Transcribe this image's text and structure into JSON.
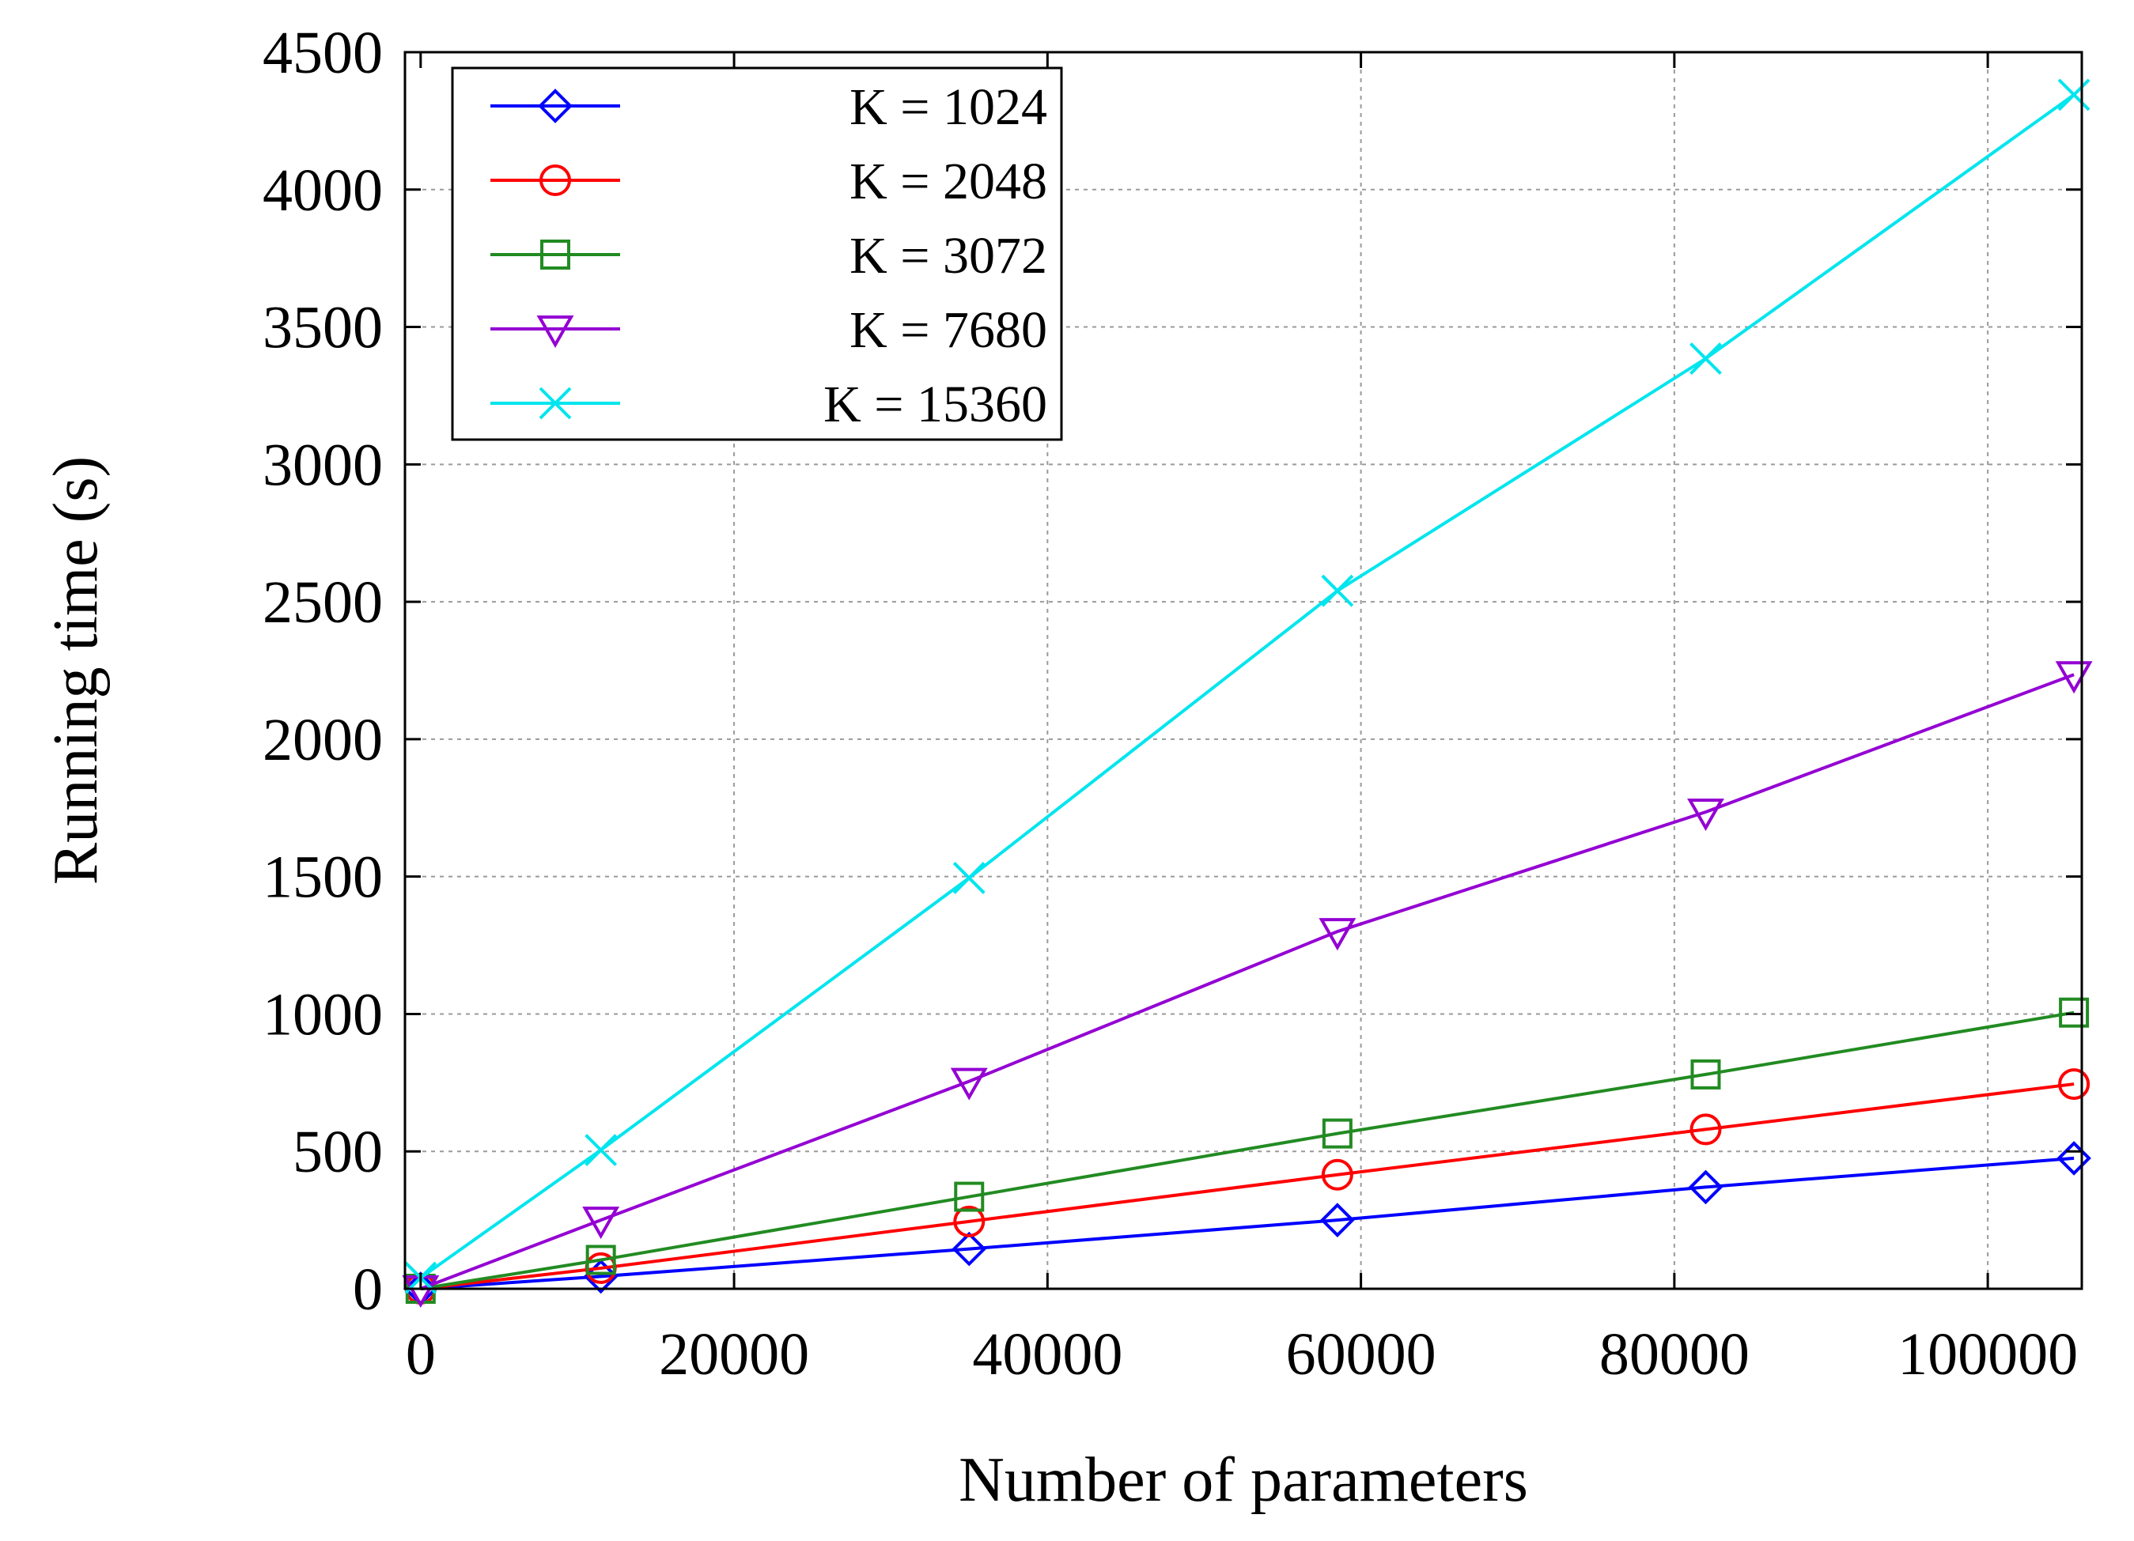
{
  "chart_data": {
    "type": "line",
    "title": "",
    "xlabel": "Number of parameters",
    "ylabel": "Running time (s)",
    "xlim": [
      -1000,
      106000
    ],
    "ylim": [
      0,
      4500
    ],
    "xticks": [
      0,
      20000,
      40000,
      60000,
      80000,
      100000
    ],
    "yticks": [
      0,
      500,
      1000,
      1500,
      2000,
      2500,
      3000,
      3500,
      4000,
      4500
    ],
    "xtick_labels": [
      "0",
      "20000",
      "40000",
      "60000",
      "80000",
      "100000"
    ],
    "ytick_labels": [
      "0",
      "500",
      "1000",
      "1500",
      "2000",
      "2500",
      "3000",
      "3500",
      "4000",
      "4500"
    ],
    "grid": true,
    "legend_position": "top-left",
    "x": [
      0,
      11500,
      35000,
      58500,
      82000,
      105500
    ],
    "series": [
      {
        "name": "K = 1024",
        "color": "#0000ff",
        "marker": "diamond",
        "values": [
          0,
          45,
          145,
          250,
          370,
          475
        ]
      },
      {
        "name": "K = 2048",
        "color": "#ff0000",
        "marker": "circle",
        "values": [
          0,
          75,
          245,
          415,
          580,
          745
        ]
      },
      {
        "name": "K = 3072",
        "color": "#228b22",
        "marker": "square",
        "values": [
          0,
          105,
          335,
          565,
          780,
          1005
        ]
      },
      {
        "name": "K = 7680",
        "color": "#9400d3",
        "marker": "triangle-down",
        "values": [
          0,
          250,
          755,
          1300,
          1735,
          2235
        ]
      },
      {
        "name": "K = 15360",
        "color": "#00e5ee",
        "marker": "cross",
        "values": [
          40,
          505,
          1495,
          2540,
          3385,
          4345
        ]
      }
    ]
  }
}
